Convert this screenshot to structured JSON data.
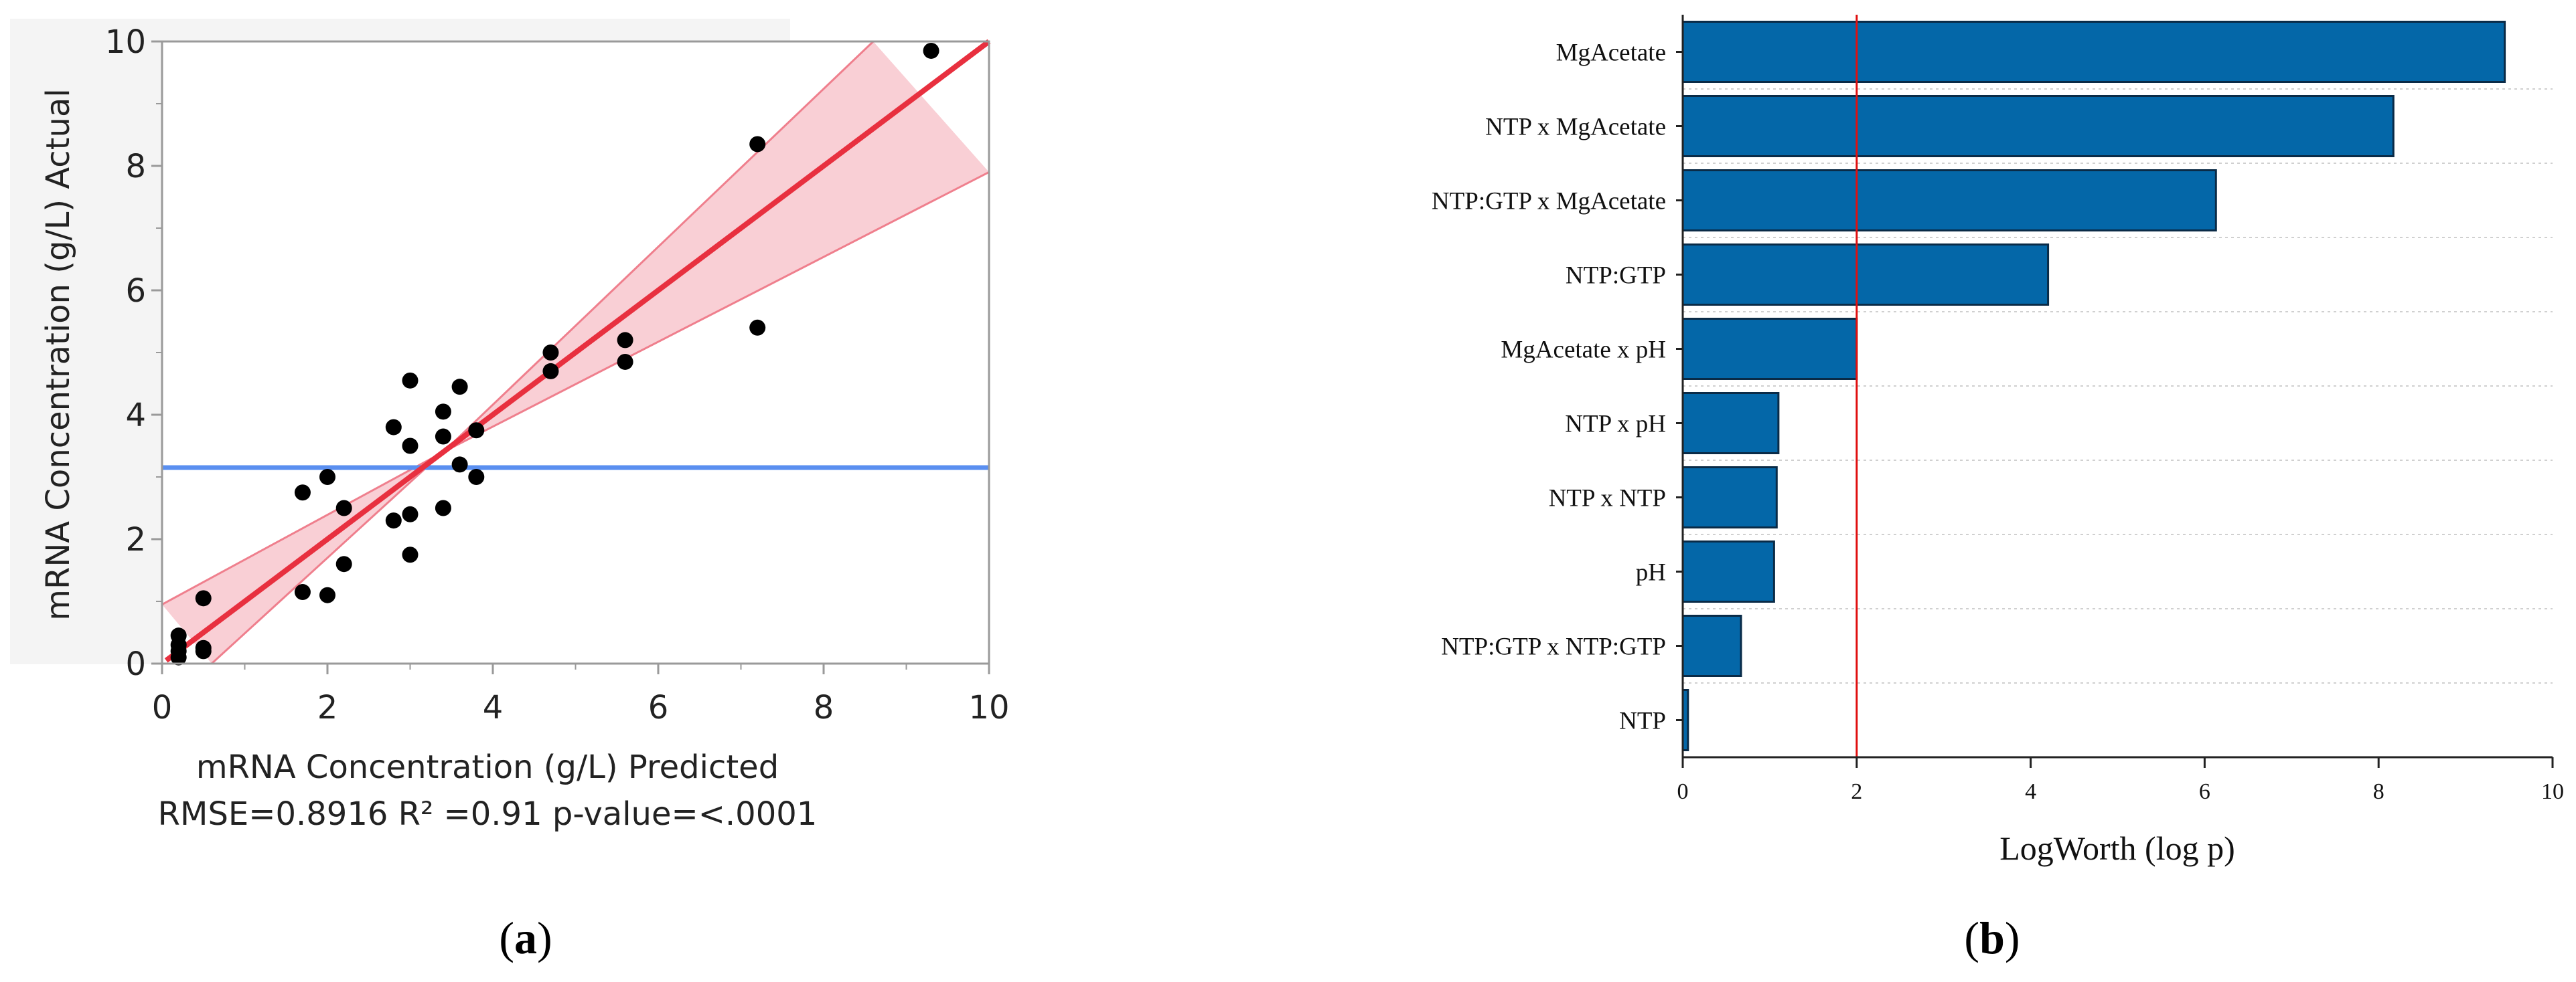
{
  "colors": {
    "scatter_bg": "#f4f4f4",
    "frame": "#9a9a9a",
    "point": "#000000",
    "fit_line": "#e8303f",
    "band_fill": "#f9cfd5",
    "band_edge": "#ef7f8d",
    "mean_line": "#5a8ff0",
    "bar_fill": "#0467a8",
    "bar_edge": "#0a2b47",
    "threshold": "#e01010",
    "grid": "#d0d0d0"
  },
  "chart_data": [
    {
      "type": "scatter",
      "panel_label": "a",
      "xlabel": "mRNA Concentration (g/L) Predicted",
      "ylabel": "mRNA Concentration (g/L) Actual",
      "stats_caption": "RMSE=0.8916 R² =0.91 p-value=<.0001",
      "xlim": [
        0,
        10
      ],
      "ylim": [
        0,
        10
      ],
      "xticks": [
        0,
        2,
        4,
        6,
        8,
        10
      ],
      "yticks": [
        0,
        2,
        4,
        6,
        8,
        10
      ],
      "xtick_labels": [
        "0",
        "2",
        "4",
        "6",
        "8",
        "10"
      ],
      "ytick_labels": [
        "0",
        "2",
        "4",
        "6",
        "8",
        "10"
      ],
      "mean_y": 3.15,
      "fit_line": {
        "x": [
          0.05,
          10
        ],
        "y": [
          0.05,
          10
        ]
      },
      "confidence_band": {
        "upper": [
          [
            0,
            0.95
          ],
          [
            3.4,
            3.4
          ],
          [
            8.6,
            10
          ]
        ],
        "lower": [
          [
            0.6,
            0
          ],
          [
            3.4,
            3.4
          ],
          [
            10,
            7.9
          ]
        ]
      },
      "points": [
        [
          9.3,
          9.85
        ],
        [
          7.2,
          8.35
        ],
        [
          7.2,
          5.4
        ],
        [
          5.6,
          5.2
        ],
        [
          5.6,
          4.85
        ],
        [
          4.7,
          5.0
        ],
        [
          4.7,
          4.7
        ],
        [
          3.8,
          3.75
        ],
        [
          3.8,
          3.0
        ],
        [
          3.6,
          4.45
        ],
        [
          3.6,
          3.2
        ],
        [
          3.4,
          4.05
        ],
        [
          3.4,
          3.65
        ],
        [
          3.4,
          2.5
        ],
        [
          3.0,
          4.55
        ],
        [
          3.0,
          3.5
        ],
        [
          3.0,
          2.4
        ],
        [
          3.0,
          1.75
        ],
        [
          2.8,
          3.8
        ],
        [
          2.8,
          2.3
        ],
        [
          2.2,
          2.5
        ],
        [
          2.2,
          1.6
        ],
        [
          2.0,
          3.0
        ],
        [
          2.0,
          1.1
        ],
        [
          1.7,
          2.75
        ],
        [
          1.7,
          1.15
        ],
        [
          0.5,
          1.05
        ],
        [
          0.5,
          0.25
        ],
        [
          0.5,
          0.2
        ],
        [
          0.2,
          0.45
        ],
        [
          0.2,
          0.3
        ],
        [
          0.2,
          0.2
        ],
        [
          0.2,
          0.1
        ]
      ]
    },
    {
      "type": "bar",
      "orientation": "horizontal",
      "panel_label": "b",
      "xlabel": "LogWorth (log p)",
      "xlim": [
        0,
        10
      ],
      "xticks": [
        0,
        2,
        4,
        6,
        8,
        10
      ],
      "xtick_labels": [
        "0",
        "2",
        "4",
        "6",
        "8",
        "10"
      ],
      "threshold": 2,
      "categories": [
        "MgAcetate",
        "NTP x MgAcetate",
        "NTP:GTP x MgAcetate",
        "NTP:GTP",
        "MgAcetate x pH",
        "NTP x pH",
        "NTP x NTP",
        "pH",
        "NTP:GTP x NTP:GTP",
        "NTP"
      ],
      "values": [
        9.45,
        8.17,
        6.13,
        4.2,
        2.0,
        1.1,
        1.08,
        1.05,
        0.67,
        0.06
      ]
    }
  ]
}
